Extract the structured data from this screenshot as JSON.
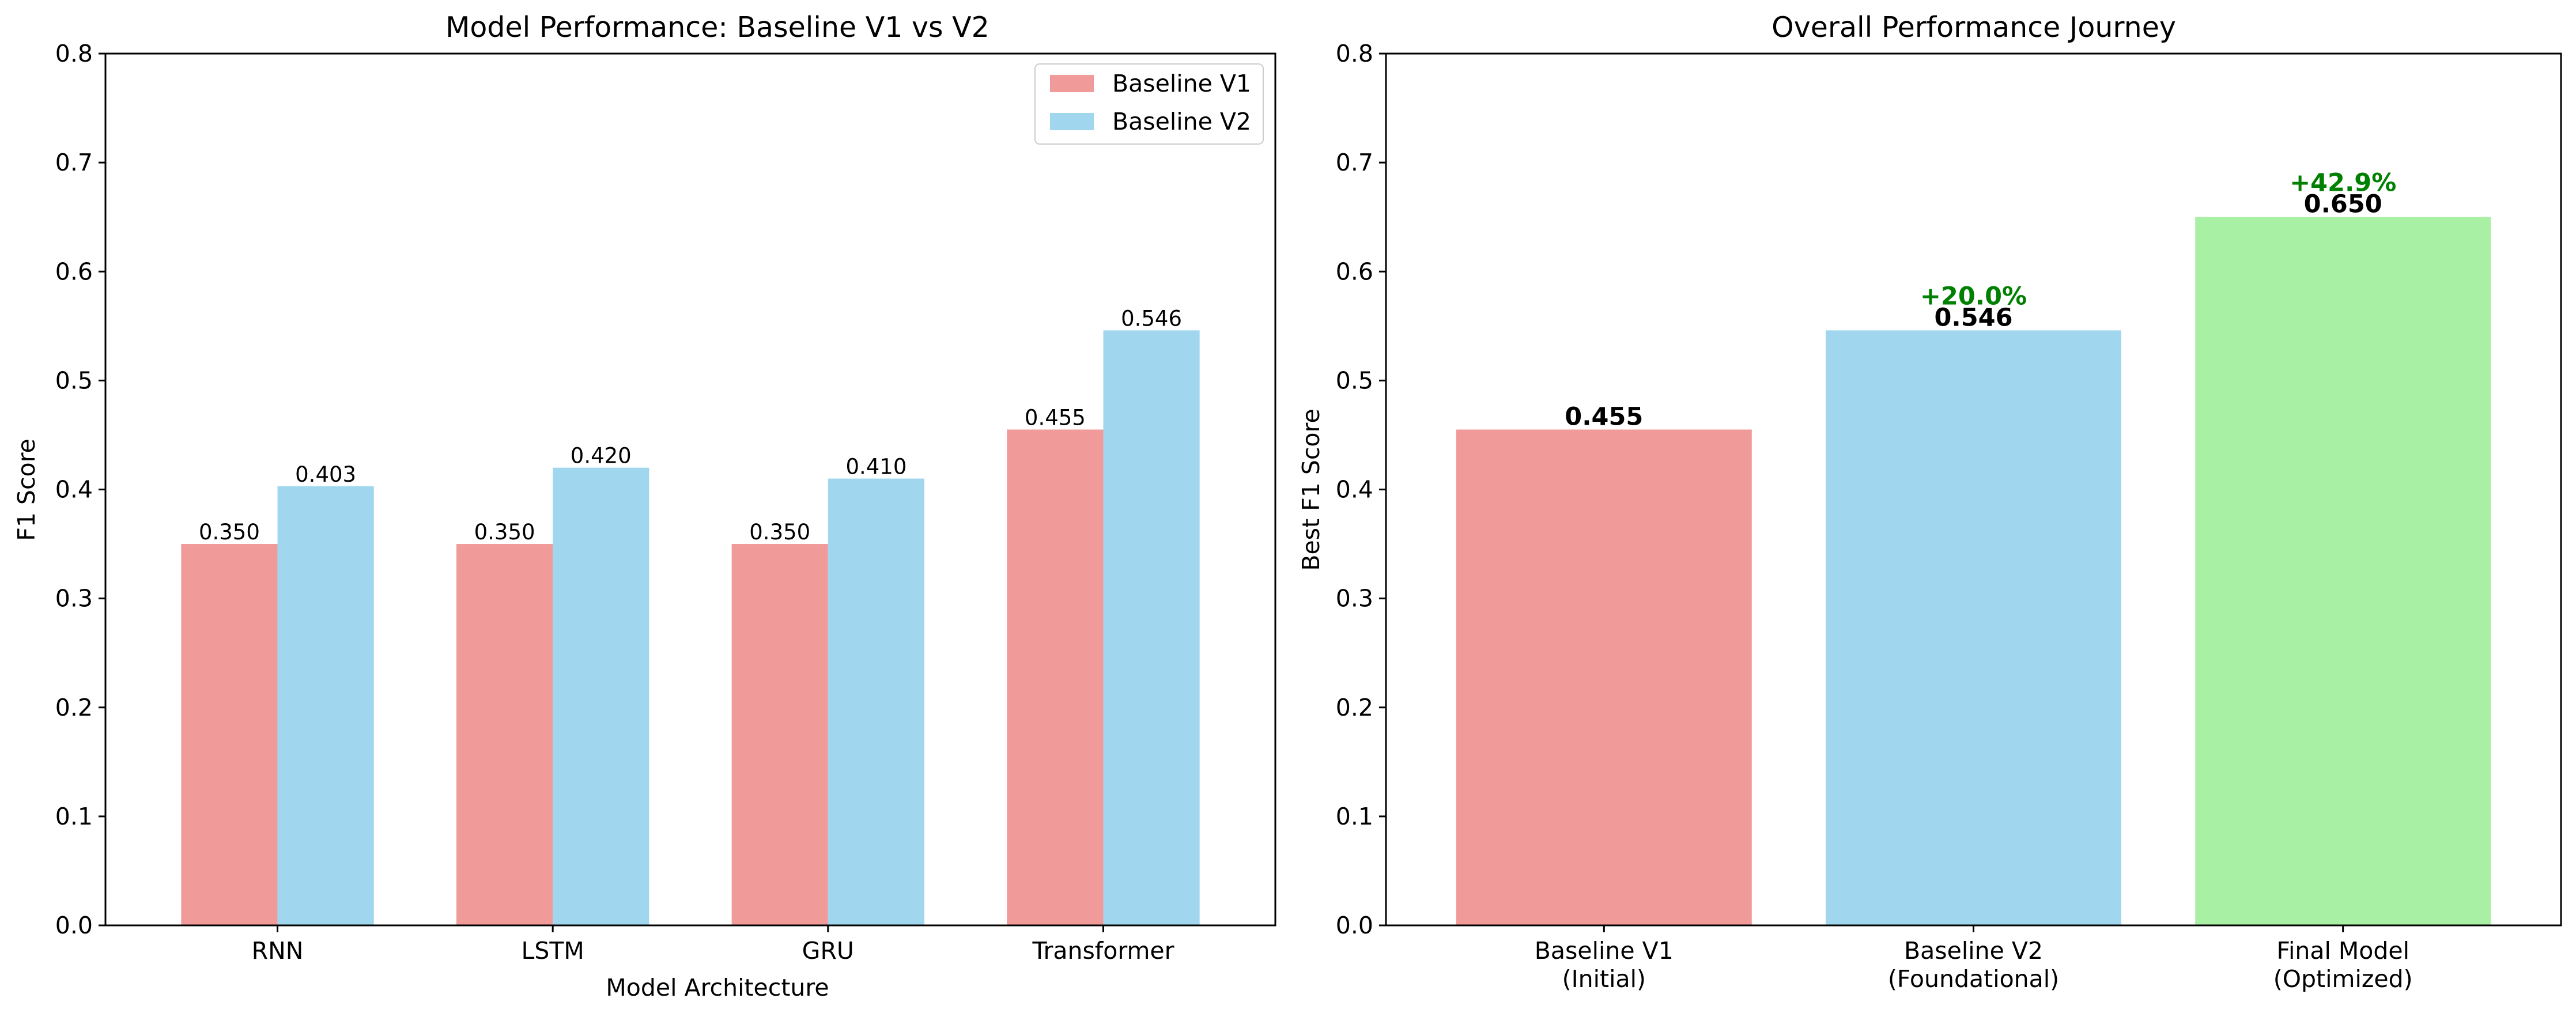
{
  "chart_data": [
    {
      "type": "bar",
      "title": "Model Performance: Baseline V1 vs V2",
      "xlabel": "Model Architecture",
      "ylabel": "F1 Score",
      "ylim": [
        0,
        0.8
      ],
      "yticks": [
        0.0,
        0.1,
        0.2,
        0.3,
        0.4,
        0.5,
        0.6,
        0.7,
        0.8
      ],
      "ytick_labels": [
        "0.0",
        "0.1",
        "0.2",
        "0.3",
        "0.4",
        "0.5",
        "0.6",
        "0.7",
        "0.8"
      ],
      "categories": [
        "RNN",
        "LSTM",
        "GRU",
        "Transformer"
      ],
      "grid": false,
      "legend": "top-right",
      "series": [
        {
          "name": "Baseline V1",
          "color": "#f19a9a",
          "values": [
            0.35,
            0.35,
            0.35,
            0.455
          ],
          "labels": [
            "0.350",
            "0.350",
            "0.350",
            "0.455"
          ]
        },
        {
          "name": "Baseline V2",
          "color": "#a1d7ee",
          "values": [
            0.403,
            0.42,
            0.41,
            0.546
          ],
          "labels": [
            "0.403",
            "0.420",
            "0.410",
            "0.546"
          ]
        }
      ]
    },
    {
      "type": "bar",
      "title": "Overall Performance Journey",
      "xlabel": "",
      "ylabel": "Best F1 Score",
      "ylim": [
        0,
        0.8
      ],
      "yticks": [
        0.0,
        0.1,
        0.2,
        0.3,
        0.4,
        0.5,
        0.6,
        0.7,
        0.8
      ],
      "ytick_labels": [
        "0.0",
        "0.1",
        "0.2",
        "0.3",
        "0.4",
        "0.5",
        "0.6",
        "0.7",
        "0.8"
      ],
      "grid": false,
      "categories": [
        [
          "Baseline V1",
          "(Initial)"
        ],
        [
          "Baseline V2",
          "(Foundational)"
        ],
        [
          "Final Model",
          "(Optimized)"
        ]
      ],
      "values": [
        0.455,
        0.546,
        0.65
      ],
      "labels": [
        "0.455",
        "0.546",
        "0.650"
      ],
      "colors": [
        "#f19a9a",
        "#a1d7ee",
        "#a8f1a4"
      ],
      "improvements": [
        "",
        "+20.0%",
        "+42.9%"
      ],
      "improvement_color": "#008000"
    }
  ]
}
